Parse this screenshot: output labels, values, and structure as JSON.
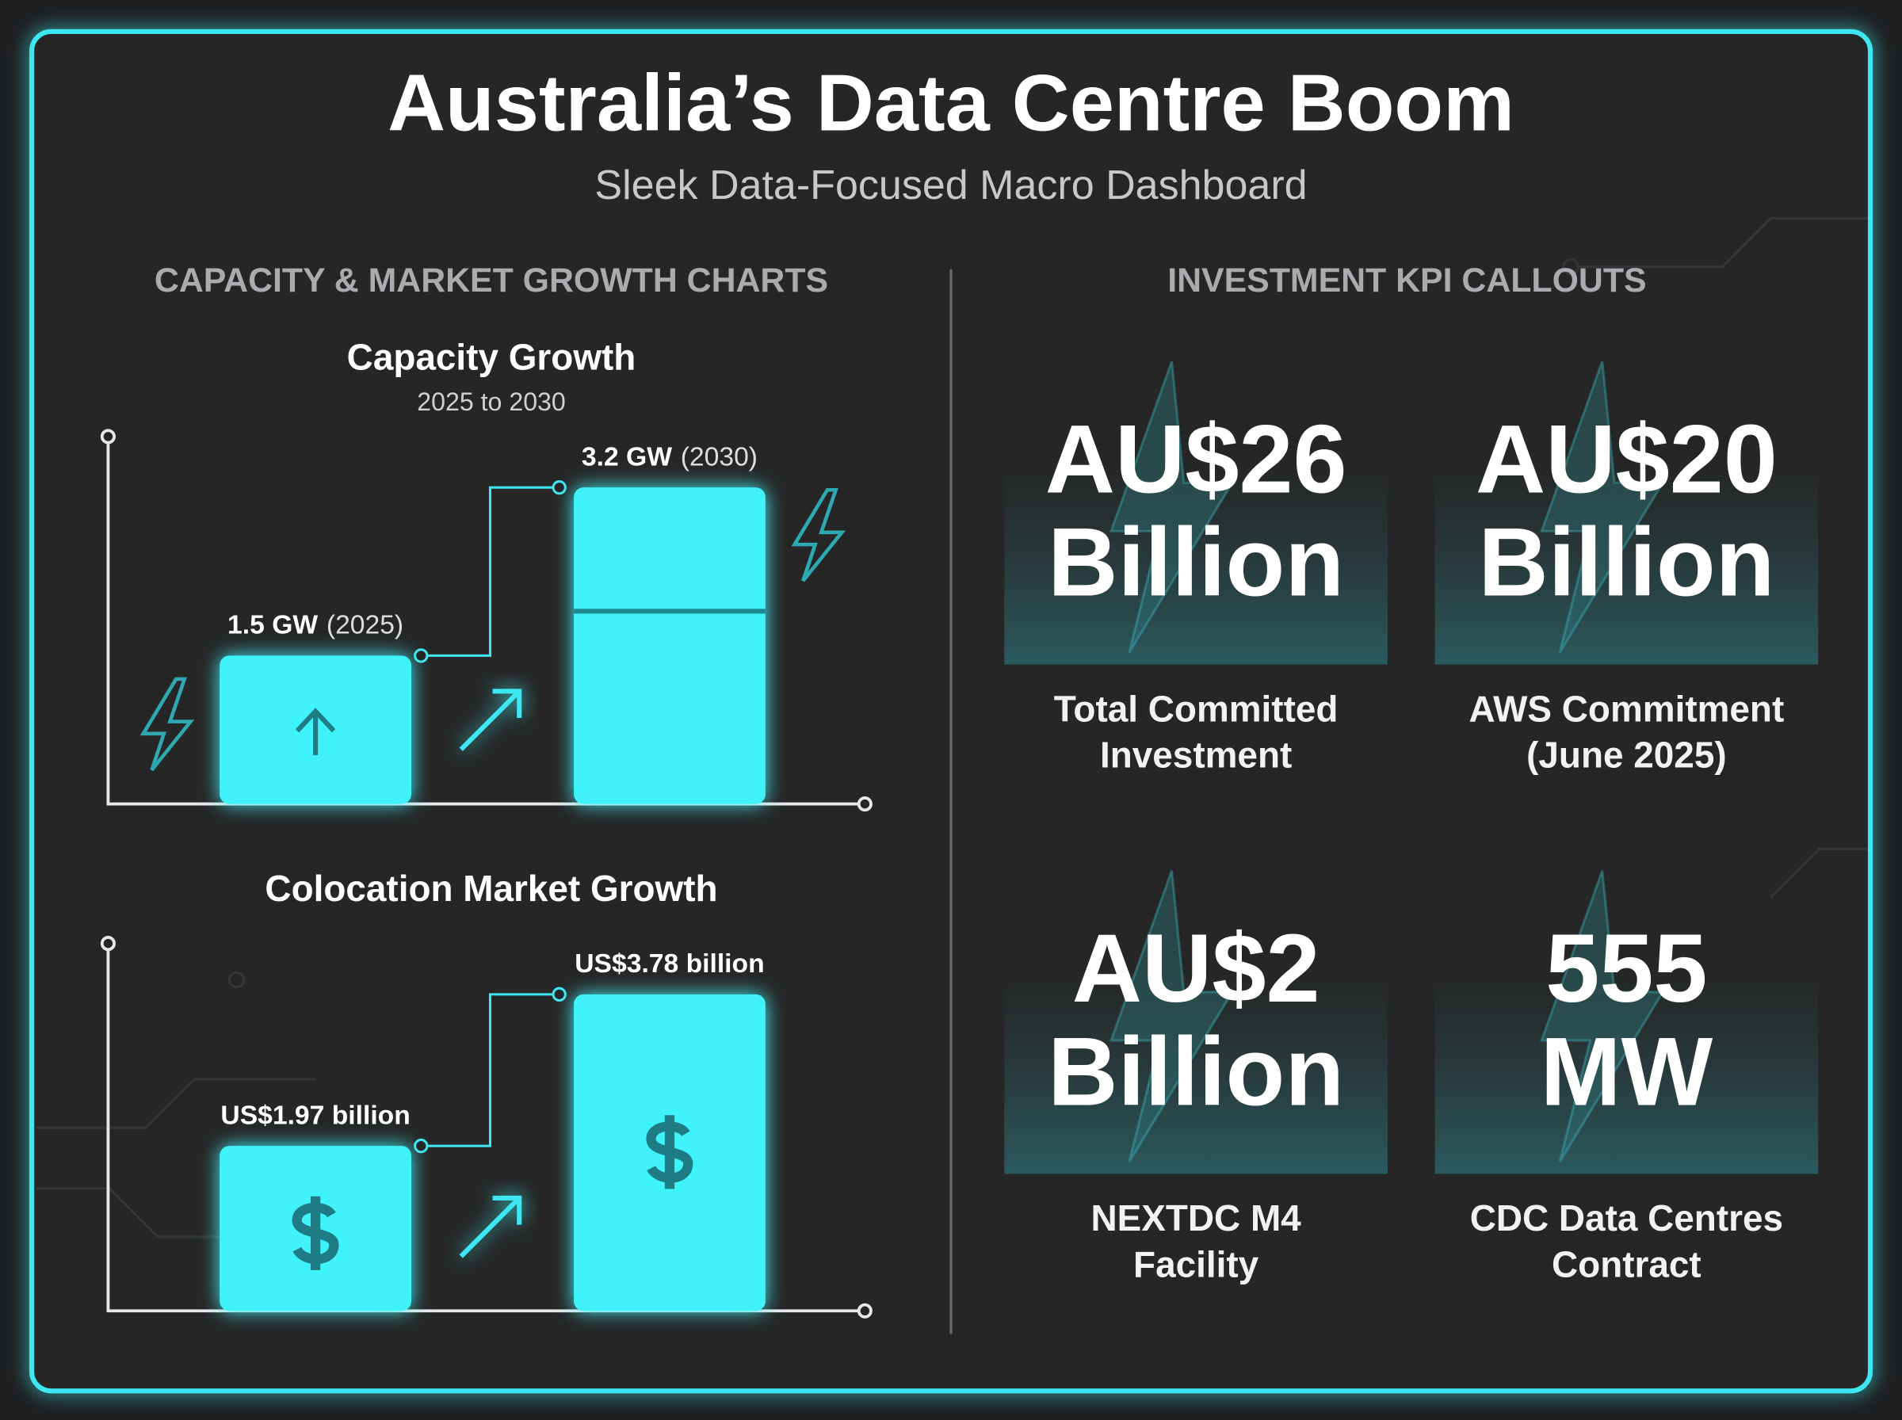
{
  "header": {
    "title": "Australia’s Data Centre Boom",
    "subtitle": "Sleek Data-Focused Macro Dashboard"
  },
  "left_section": {
    "title": "CAPACITY & MARKET GROWTH CHARTS"
  },
  "chart_data": [
    {
      "type": "bar",
      "title": "Capacity Growth",
      "subtitle": "2025 to 2030",
      "categories": [
        "(2025)",
        "(2030)"
      ],
      "values": [
        1.5,
        3.2
      ],
      "value_labels": [
        "1.5 GW",
        "3.2 GW"
      ],
      "color": "#3ff3fb"
    },
    {
      "type": "bar",
      "title": "Colocation Market Growth",
      "values": [
        1.97,
        3.78
      ],
      "value_labels": [
        "US$1.97 billion",
        "US$3.78 billion"
      ],
      "color": "#3ff3fb"
    }
  ],
  "right_section": {
    "title": "INVESTMENT KPI CALLOUTS"
  },
  "kpis": [
    {
      "value_lines": [
        "AU$26",
        "Billion"
      ],
      "label_lines": [
        "Total Committed",
        "Investment"
      ]
    },
    {
      "value_lines": [
        "AU$20",
        "Billion"
      ],
      "label_lines": [
        "AWS Commitment",
        "(June 2025)"
      ]
    },
    {
      "value_lines": [
        "AU$2",
        "Billion"
      ],
      "label_lines": [
        "NEXTDC M4",
        "Facility"
      ]
    },
    {
      "value_lines": [
        "555",
        "MW"
      ],
      "label_lines": [
        "CDC Data Centres",
        "Contract"
      ]
    }
  ]
}
